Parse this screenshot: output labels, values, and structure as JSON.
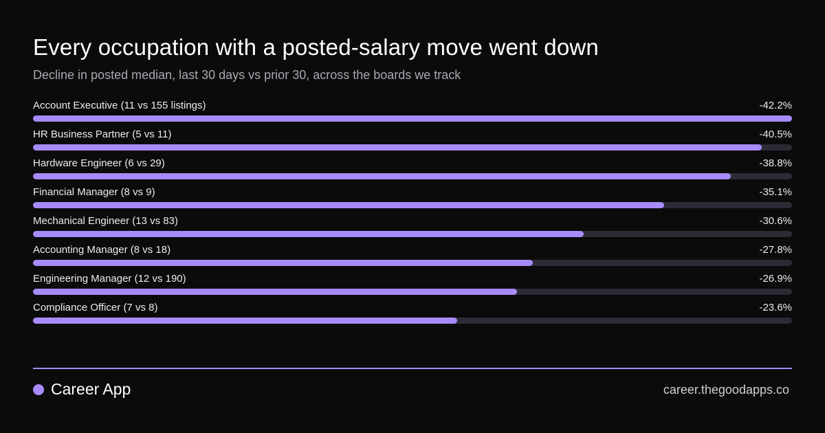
{
  "colors": {
    "background": "#0b0b0b",
    "accent": "#a78bfa",
    "track": "#2c2b35",
    "subtitle": "#a9a9b3"
  },
  "footer": {
    "brand_name": "Career App",
    "url": "career.thegoodapps.co"
  },
  "chart_data": {
    "type": "bar",
    "orientation": "horizontal",
    "title": "Every occupation with a posted-salary move went down",
    "subtitle": "Decline in posted median, last 30 days vs prior 30, across the boards we track",
    "categories": [
      "Account Executive (11 vs 155 listings)",
      "HR Business Partner (5 vs 11)",
      "Hardware Engineer (6 vs 29)",
      "Financial Manager (8 vs 9)",
      "Mechanical Engineer (13 vs 83)",
      "Accounting Manager (8 vs 18)",
      "Engineering Manager (12 vs 190)",
      "Compliance Officer (7 vs 8)"
    ],
    "values": [
      -42.2,
      -40.5,
      -38.8,
      -35.1,
      -30.6,
      -27.8,
      -26.9,
      -23.6
    ],
    "value_labels": [
      "-42.2%",
      "-40.5%",
      "-38.8%",
      "-35.1%",
      "-30.6%",
      "-27.8%",
      "-26.9%",
      "-23.6%"
    ],
    "unit": "%",
    "xlim": [
      0,
      42.2
    ],
    "grid": false,
    "legend": "none"
  }
}
